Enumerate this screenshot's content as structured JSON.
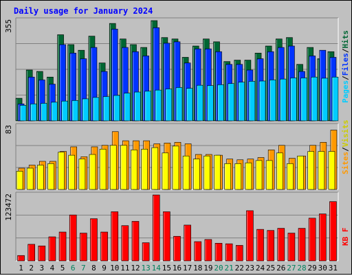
{
  "chart_data": [
    {
      "type": "bar",
      "title": "Daily usage for January 2024",
      "categories": [
        "1",
        "2",
        "3",
        "4",
        "5",
        "6",
        "7",
        "8",
        "9",
        "10",
        "11",
        "12",
        "13",
        "14",
        "15",
        "16",
        "17",
        "18",
        "19",
        "20",
        "21",
        "22",
        "23",
        "24",
        "25",
        "26",
        "27",
        "28",
        "29",
        "30",
        "31"
      ],
      "weekend_days": [
        "6",
        "7",
        "13",
        "14",
        "20",
        "21",
        "27",
        "28"
      ],
      "ylabel_parts": [
        "Pages",
        "/",
        "Files",
        "/",
        "Hits"
      ],
      "ymax_label": "355",
      "ylim": [
        0,
        355
      ],
      "series": [
        {
          "name": "Hits",
          "color": "#006633",
          "values": [
            80,
            180,
            175,
            155,
            305,
            270,
            250,
            300,
            205,
            345,
            290,
            270,
            260,
            355,
            295,
            290,
            225,
            265,
            290,
            280,
            210,
            215,
            215,
            240,
            265,
            290,
            295,
            200,
            260,
            220,
            245
          ]
        },
        {
          "name": "Files",
          "color": "#0033ff",
          "values": [
            60,
            155,
            145,
            130,
            270,
            240,
            220,
            260,
            175,
            325,
            260,
            245,
            230,
            330,
            275,
            280,
            205,
            255,
            255,
            245,
            200,
            200,
            180,
            220,
            245,
            260,
            265,
            175,
            230,
            250,
            225
          ]
        },
        {
          "name": "Pages",
          "color": "#00ccff",
          "values": [
            55,
            60,
            62,
            66,
            70,
            72,
            78,
            83,
            86,
            90,
            98,
            102,
            105,
            109,
            113,
            118,
            115,
            126,
            125,
            128,
            132,
            137,
            140,
            141,
            145,
            148,
            152,
            152,
            155,
            151,
            155
          ]
        }
      ]
    },
    {
      "type": "bar",
      "ylabel_parts": [
        "Sites",
        "/",
        "Visits"
      ],
      "ymax_label": "83",
      "ylim": [
        0,
        83
      ],
      "series": [
        {
          "name": "Visits",
          "color": "#ff9900",
          "values": [
            28,
            32,
            37,
            37,
            50,
            56,
            43,
            56,
            58,
            76,
            64,
            64,
            64,
            60,
            61,
            62,
            60,
            46,
            46,
            45,
            40,
            39,
            40,
            42,
            52,
            58,
            41,
            44,
            58,
            62,
            78
          ]
        },
        {
          "name": "Sites",
          "color": "#ffff00",
          "values": [
            24,
            28,
            32,
            34,
            49,
            45,
            40,
            46,
            53,
            58,
            58,
            52,
            53,
            55,
            48,
            57,
            44,
            40,
            44,
            45,
            34,
            34,
            35,
            38,
            38,
            48,
            34,
            44,
            50,
            50,
            50
          ]
        }
      ]
    },
    {
      "type": "bar",
      "ylabel_parts": [
        "KB F"
      ],
      "ymax_label": "123472",
      "ylim": [
        0,
        123472
      ],
      "series": [
        {
          "name": "KB F",
          "color": "#ff0000",
          "values": [
            10000,
            31000,
            28000,
            45000,
            54000,
            86000,
            52000,
            79000,
            54000,
            92000,
            66000,
            74000,
            34000,
            123472,
            92000,
            46000,
            67000,
            36000,
            40000,
            33000,
            32000,
            29000,
            94000,
            59000,
            57000,
            61000,
            52000,
            61000,
            80000,
            88000,
            111000
          ]
        }
      ]
    }
  ]
}
